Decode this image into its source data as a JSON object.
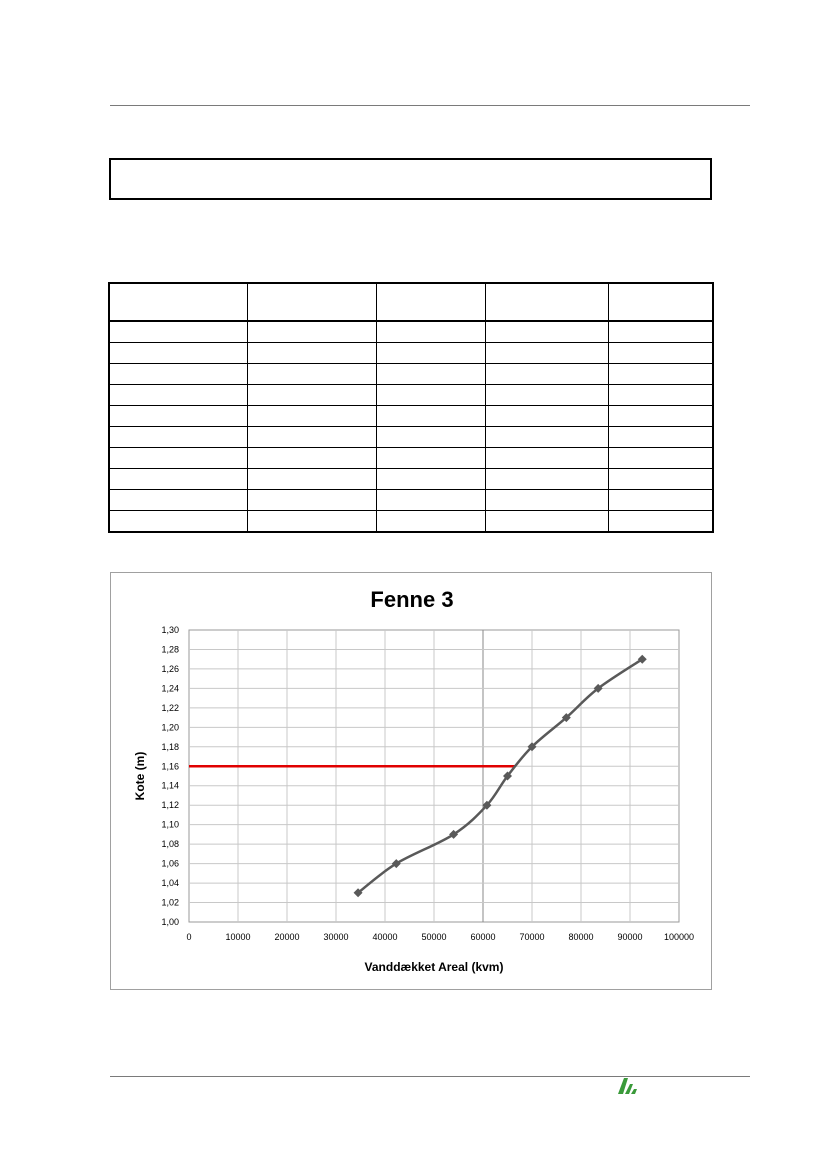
{
  "chart_data": {
    "type": "line",
    "title": "Fenne 3",
    "xlabel": "Vanddækket Areal (kvm)",
    "ylabel": "Kote (m)",
    "xlim": [
      0,
      100000
    ],
    "ylim": [
      1.0,
      1.3
    ],
    "x_ticks": [
      "0",
      "10000",
      "20000",
      "30000",
      "40000",
      "50000",
      "60000",
      "70000",
      "80000",
      "90000",
      "100000"
    ],
    "y_ticks": [
      "1,00",
      "1,02",
      "1,04",
      "1,06",
      "1,08",
      "1,10",
      "1,12",
      "1,14",
      "1,16",
      "1,18",
      "1,20",
      "1,22",
      "1,24",
      "1,26",
      "1,28",
      "1,30"
    ],
    "grid": true,
    "series": [
      {
        "x": [
          34500,
          42300,
          54000,
          60800,
          65000,
          70000,
          77000,
          83500,
          92500
        ],
        "y": [
          1.03,
          1.06,
          1.09,
          1.12,
          1.15,
          1.18,
          1.21,
          1.24,
          1.27
        ],
        "color": "#595959",
        "marker": "diamond"
      }
    ],
    "reference_line": {
      "x": [
        0,
        66500
      ],
      "y": 1.16,
      "color": "#e00000"
    }
  },
  "colors": {
    "series": "#595959",
    "reference": "#e00000",
    "grid": "#c8c8c8",
    "logo": "#3a9a3a"
  }
}
